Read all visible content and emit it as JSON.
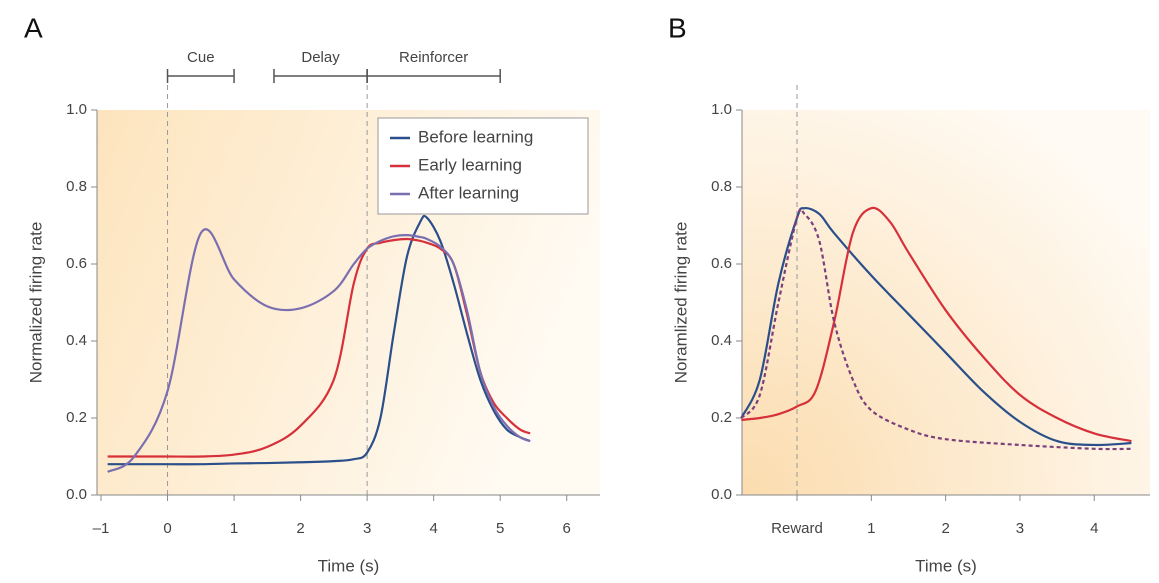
{
  "chart_data": [
    {
      "type": "line",
      "panel": "A",
      "xlabel": "Time (s)",
      "ylabel": "Normalized firing rate",
      "xlim": [
        -1.06,
        6.5
      ],
      "ylim": [
        0,
        1
      ],
      "xticks": [
        {
          "value": -1,
          "label": "–1"
        },
        0,
        1,
        2,
        3,
        4,
        5,
        6
      ],
      "yticks": [
        {
          "value": 0,
          "label": "0.0"
        },
        0.2,
        0.4,
        0.6,
        0.8,
        {
          "value": 1,
          "label": "1.0"
        }
      ],
      "vlines": [
        0,
        3
      ],
      "annotations": [
        {
          "text": "Cue",
          "x": [
            0,
            1
          ]
        },
        {
          "text": "Delay",
          "x": [
            1.6,
            3
          ]
        },
        {
          "text": "Reinforcer",
          "x": [
            3,
            5
          ]
        }
      ],
      "legend": "upper right",
      "x": [
        -0.9,
        -0.5,
        0,
        0.5,
        1,
        1.5,
        2,
        2.5,
        2.8,
        3,
        3.2,
        3.4,
        3.6,
        3.8,
        3.9,
        4.1,
        4.3,
        4.5,
        4.7,
        4.9,
        5.1,
        5.3,
        5.45
      ],
      "series": [
        {
          "name": "Before learning",
          "color": "#2b4f8a",
          "values": [
            0.08,
            0.08,
            0.08,
            0.08,
            0.082,
            0.083,
            0.085,
            0.088,
            0.093,
            0.11,
            0.2,
            0.42,
            0.62,
            0.71,
            0.72,
            0.66,
            0.55,
            0.42,
            0.3,
            0.22,
            0.17,
            0.15,
            0.14
          ]
        },
        {
          "name": "Early learning",
          "color": "#d6303a",
          "values": [
            0.1,
            0.1,
            0.1,
            0.1,
            0.105,
            0.125,
            0.18,
            0.3,
            0.55,
            0.64,
            0.655,
            0.662,
            0.665,
            0.66,
            0.655,
            0.64,
            0.6,
            0.47,
            0.32,
            0.24,
            0.2,
            0.17,
            0.16
          ]
        },
        {
          "name": "After learning",
          "color": "#7b6fb0",
          "values": [
            0.06,
            0.1,
            0.27,
            0.68,
            0.56,
            0.49,
            0.485,
            0.53,
            0.6,
            0.64,
            0.66,
            0.672,
            0.675,
            0.67,
            0.665,
            0.645,
            0.6,
            0.48,
            0.32,
            0.23,
            0.18,
            0.15,
            0.14
          ]
        }
      ]
    },
    {
      "type": "line",
      "panel": "B",
      "xlabel": "Time (s)",
      "ylabel": "Noramlized firing rate",
      "xlim": [
        -0.74,
        4.75
      ],
      "ylim": [
        0,
        1
      ],
      "xticks": [
        {
          "value": 0,
          "label": "Reward"
        },
        1,
        2,
        3,
        4
      ],
      "yticks": [
        {
          "value": 0,
          "label": "0.0"
        },
        0.2,
        0.4,
        0.6,
        0.8,
        {
          "value": 1,
          "label": "1.0"
        }
      ],
      "vlines": [
        0
      ],
      "series": [
        {
          "color": "#2b4f8a",
          "x": [
            -0.75,
            -0.5,
            -0.25,
            0,
            0.1,
            0.3,
            0.5,
            1,
            1.5,
            2,
            2.5,
            3,
            3.5,
            4,
            4.5
          ],
          "values": [
            0.2,
            0.3,
            0.55,
            0.72,
            0.745,
            0.73,
            0.68,
            0.57,
            0.47,
            0.37,
            0.27,
            0.19,
            0.14,
            0.13,
            0.135
          ]
        },
        {
          "color": "#d6303a",
          "x": [
            -0.75,
            -0.5,
            -0.25,
            0,
            0.25,
            0.5,
            0.75,
            1,
            1.25,
            1.5,
            2,
            2.5,
            3,
            3.5,
            4,
            4.5
          ],
          "values": [
            0.195,
            0.2,
            0.21,
            0.23,
            0.27,
            0.45,
            0.68,
            0.745,
            0.71,
            0.63,
            0.48,
            0.36,
            0.26,
            0.2,
            0.16,
            0.14
          ]
        },
        {
          "color": "#7b3f7a",
          "dashed": true,
          "x": [
            -0.75,
            -0.5,
            -0.25,
            0,
            0.1,
            0.3,
            0.5,
            0.75,
            1,
            1.5,
            2,
            3,
            4,
            4.5
          ],
          "values": [
            0.2,
            0.26,
            0.5,
            0.72,
            0.73,
            0.66,
            0.45,
            0.3,
            0.22,
            0.17,
            0.145,
            0.13,
            0.12,
            0.12
          ]
        }
      ]
    }
  ]
}
